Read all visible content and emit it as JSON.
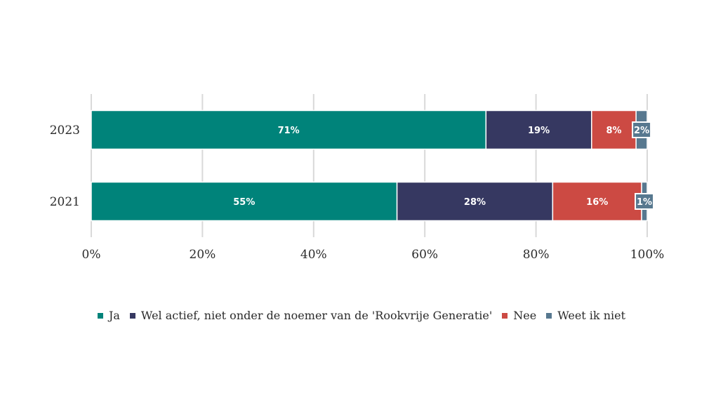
{
  "chart_data": {
    "type": "bar",
    "orientation": "horizontal",
    "stacked": true,
    "categories": [
      "2023",
      "2021"
    ],
    "series": [
      {
        "name": "Ja",
        "values": [
          71,
          55
        ],
        "labels": [
          "71%",
          "55%"
        ],
        "color": "#00837a"
      },
      {
        "name": "Wel actief, niet onder de noemer van de 'Rookvrije Generatie'",
        "values": [
          19,
          28
        ],
        "labels": [
          "19%",
          "28%"
        ],
        "color": "#363861"
      },
      {
        "name": "Nee",
        "values": [
          8,
          16
        ],
        "labels": [
          "8%",
          "16%"
        ],
        "color": "#cc4a43"
      },
      {
        "name": "Weet ik niet",
        "values": [
          2,
          1
        ],
        "labels": [
          "2%",
          "1%"
        ],
        "color": "#57788f"
      }
    ],
    "xlim": [
      0,
      100
    ],
    "xticks": [
      "0%",
      "20%",
      "40%",
      "60%",
      "80%",
      "100%"
    ],
    "grid": true,
    "legend_position": "bottom"
  }
}
